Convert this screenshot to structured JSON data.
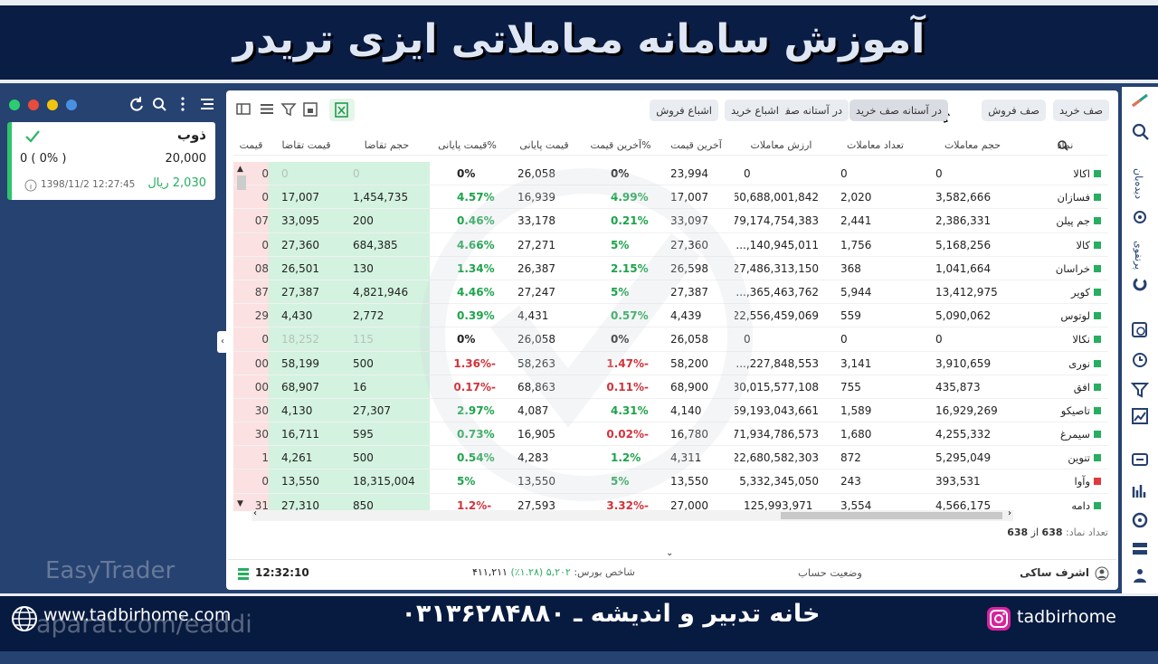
{
  "banner": {
    "title": "آموزش سامانه معاملاتی ایزی تریدر"
  },
  "watchlist": {
    "symbol": "ذوب",
    "price": "20,000",
    "change": "0 ( 0% )",
    "value": "2,030",
    "currency": "ریال",
    "datetime": "1398/11/2 12:27:45"
  },
  "watermark": "EasyTrader",
  "tabs": [
    "صف خرید",
    "صف فروش",
    "در آستانه صف خرید",
    "در آستانه صف فروش",
    "اشباع خرید",
    "اشباع فروش"
  ],
  "table": {
    "headers": [
      "نماد",
      "حجم معاملات",
      "تعداد معاملات",
      "ارزش معاملات",
      "آخرین قیمت",
      "%آخرین قیمت",
      "قیمت پایانی",
      "%قیمت پایانی",
      "حجم تقاضا",
      "قیمت تقاضا",
      "قیمت"
    ],
    "rows": [
      {
        "marker": "#27ae60",
        "cells": [
          "اکالا",
          "0",
          "0",
          "0",
          "23,994",
          "0%",
          "26,058",
          "0%",
          "0",
          "0",
          "0"
        ]
      },
      {
        "marker": "#27ae60",
        "cells": [
          "فسازان",
          "3,582,666",
          "2,020",
          "60,688,001,842",
          "17,007",
          "4.99%",
          "16,939",
          "4.57%",
          "1,454,735",
          "17,007",
          "0"
        ]
      },
      {
        "marker": "#27ae60",
        "cells": [
          "جم پیلن",
          "2,386,331",
          "2,441",
          "79,174,754,383",
          "33,097",
          "0.21%",
          "33,178",
          "0.46%",
          "200",
          "33,095",
          "07"
        ]
      },
      {
        "marker": "#27ae60",
        "cells": [
          "کالا",
          "5,168,256",
          "1,756",
          "140,945,011,...",
          "27,360",
          "5%",
          "27,271",
          "4.66%",
          "684,385",
          "27,360",
          "0"
        ]
      },
      {
        "marker": "#27ae60",
        "cells": [
          "خراسان",
          "1,041,664",
          "368",
          "27,486,313,150",
          "26,598",
          "2.15%",
          "26,387",
          "1.34%",
          "130",
          "26,501",
          "08"
        ]
      },
      {
        "marker": "#27ae60",
        "cells": [
          "کویر",
          "13,412,975",
          "5,944",
          "365,463,762,...",
          "27,387",
          "5%",
          "27,247",
          "4.46%",
          "4,821,946",
          "27,387",
          "87"
        ]
      },
      {
        "marker": "#27ae60",
        "cells": [
          "لوتوس",
          "5,090,062",
          "559",
          "22,556,459,069",
          "4,439",
          "0.57%",
          "4,431",
          "0.39%",
          "2,772",
          "4,430",
          "29"
        ]
      },
      {
        "marker": "#27ae60",
        "cells": [
          "نکالا",
          "0",
          "0",
          "0",
          "26,058",
          "0%",
          "26,058",
          "0%",
          "115",
          "18,252",
          "0"
        ]
      },
      {
        "marker": "#27ae60",
        "cells": [
          "نوری",
          "3,910,659",
          "3,141",
          "227,848,553,...",
          "58,200",
          "-1.47%",
          "58,263",
          "-1.36%",
          "500",
          "58,199",
          "00"
        ]
      },
      {
        "marker": "#27ae60",
        "cells": [
          "افق",
          "435,873",
          "755",
          "30,015,577,108",
          "68,900",
          "-0.11%",
          "68,863",
          "-0.17%",
          "16",
          "68,907",
          "00"
        ]
      },
      {
        "marker": "#27ae60",
        "cells": [
          "تاصیکو",
          "16,929,269",
          "1,589",
          "69,193,043,661",
          "4,140",
          "4.31%",
          "4,087",
          "2.97%",
          "27,307",
          "4,130",
          "30"
        ]
      },
      {
        "marker": "#27ae60",
        "cells": [
          "سیمرغ",
          "4,255,332",
          "1,680",
          "71,934,786,573",
          "16,780",
          "-0.02%",
          "16,905",
          "0.73%",
          "595",
          "16,711",
          "30"
        ]
      },
      {
        "marker": "#27ae60",
        "cells": [
          "تنوین",
          "5,295,049",
          "872",
          "22,680,582,303",
          "4,311",
          "1.2%",
          "4,283",
          "0.54%",
          "500",
          "4,261",
          "1"
        ]
      },
      {
        "marker": "#e0393e",
        "cells": [
          "وآوا",
          "393,531",
          "243",
          "5,332,345,050",
          "13,550",
          "5%",
          "13,550",
          "5%",
          "18,315,004",
          "13,550",
          "0"
        ]
      },
      {
        "marker": "#27ae60",
        "cells": [
          "دامه",
          "4,566,175",
          "3,554",
          "125,993,971",
          "27,000",
          "-3.32%",
          "27,593",
          "-1.2%",
          "850",
          "27,310",
          "31"
        ]
      }
    ]
  },
  "count": {
    "label": "تعداد نماد:",
    "shown": "638",
    "of": "از",
    "total": "638"
  },
  "status": {
    "user": "اشرف ساکی",
    "account": "وضعیت حساب",
    "index_label": "شاخص بورس:",
    "index_change": "۵,۲۰۲ (۱.۲۸٪)",
    "index_value": "۴۱۱,۲۱۱",
    "time": "12:32:10"
  },
  "sidebar": {
    "watch": "دیده‌بان",
    "portfolio": "پرتفوی"
  },
  "footer": {
    "website": "www.tadbirhome.com",
    "aparat": "aparat.com/eaddi",
    "company": "خانه تدبیر و اندیشه ـ ۰۳۱۳۶۲۸۴۸۸۰",
    "instagram": "tadbirhome"
  }
}
